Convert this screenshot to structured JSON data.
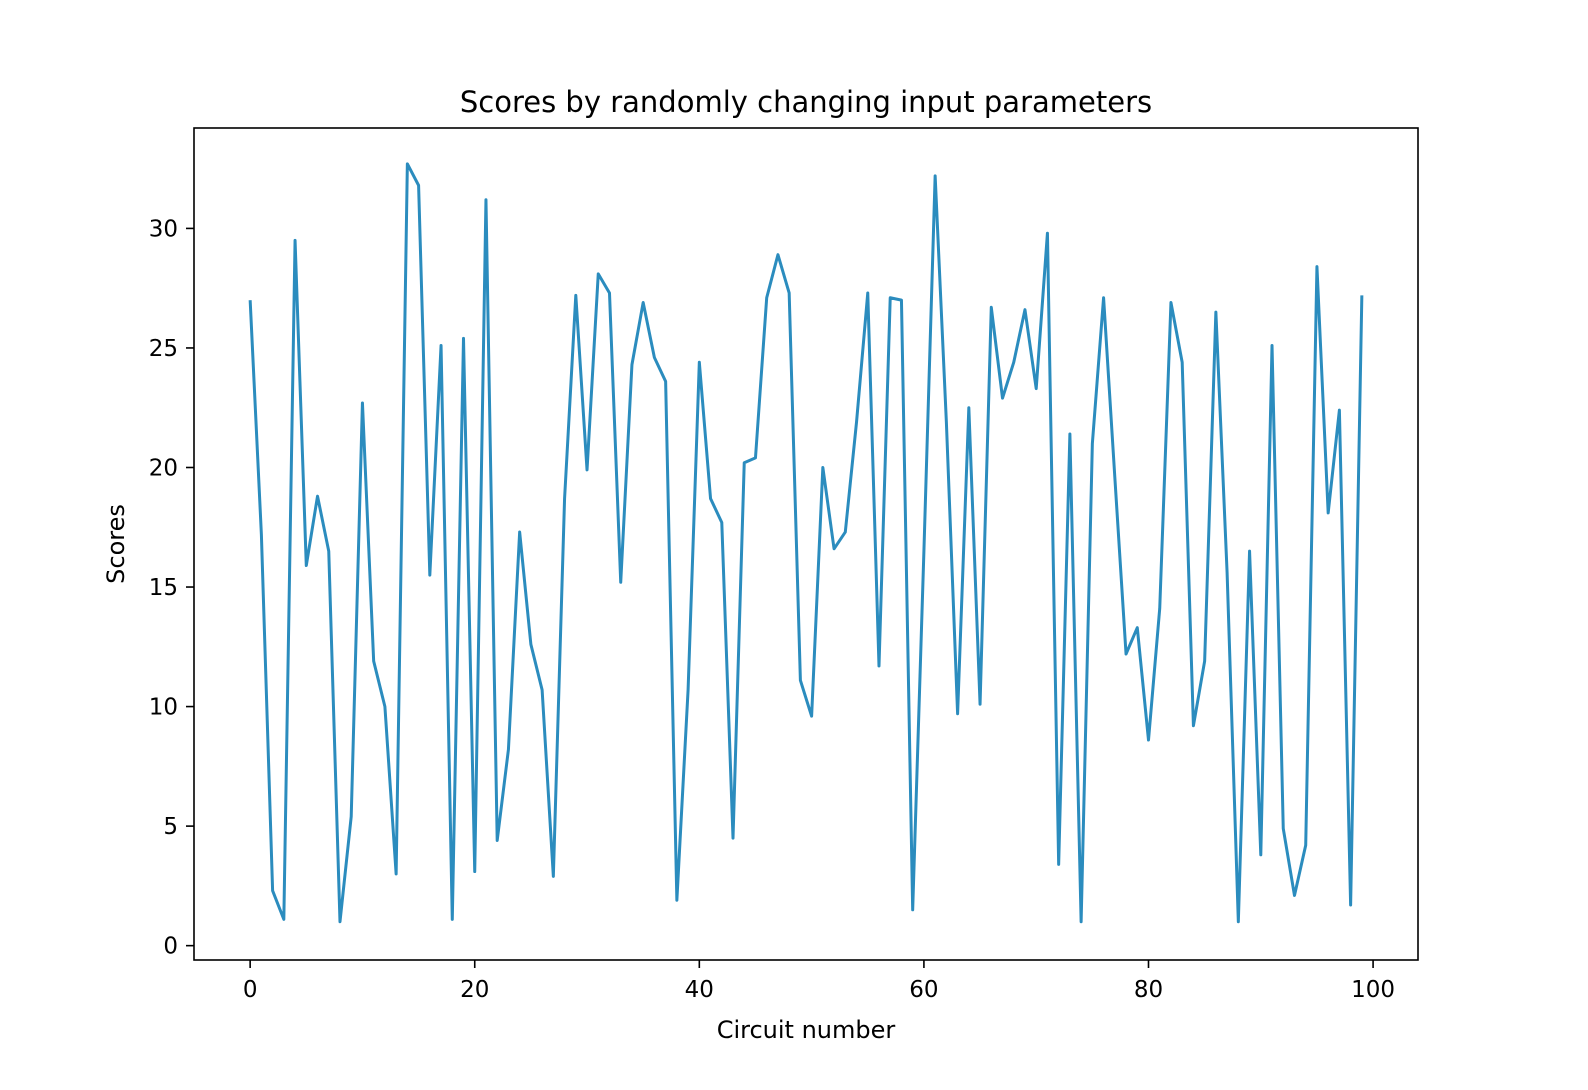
{
  "chart_data": {
    "type": "line",
    "title": "Scores by randomly changing input parameters",
    "xlabel": "Circuit number",
    "ylabel": "Scores",
    "xlim": [
      -5,
      104
    ],
    "ylim": [
      -0.6,
      34.2
    ],
    "xticks": [
      0,
      20,
      40,
      60,
      80,
      100
    ],
    "yticks": [
      0,
      5,
      10,
      15,
      20,
      25,
      30
    ],
    "grid": false,
    "color": "#2b8cbe",
    "series": [
      {
        "x": [
          0,
          1,
          2,
          3,
          4,
          5,
          6,
          7,
          8,
          9,
          10,
          11,
          12,
          13,
          14,
          15,
          16,
          17,
          18,
          19,
          20,
          21,
          22,
          23,
          24,
          25,
          26,
          27,
          28,
          29,
          30,
          31,
          32,
          33,
          34,
          35,
          36,
          37,
          38,
          39,
          40,
          41,
          42,
          43,
          44,
          45,
          46,
          47,
          48,
          49,
          50,
          51,
          52,
          53,
          54,
          55,
          56,
          57,
          58,
          59,
          60,
          61,
          62,
          63,
          64,
          65,
          66,
          67,
          68,
          69,
          70,
          71,
          72,
          73,
          74,
          75,
          76,
          77,
          78,
          79,
          80,
          81,
          82,
          83,
          84,
          85,
          86,
          87,
          88,
          89,
          90,
          91,
          92,
          93,
          94,
          95,
          96,
          97,
          98,
          99
        ],
        "values": [
          27.0,
          17.2,
          2.3,
          1.1,
          29.5,
          15.9,
          18.8,
          16.5,
          1.0,
          5.4,
          22.7,
          11.9,
          10.0,
          3.0,
          32.7,
          31.8,
          15.5,
          25.1,
          1.1,
          25.4,
          3.1,
          31.2,
          4.4,
          8.2,
          17.3,
          12.6,
          10.7,
          2.9,
          18.7,
          27.2,
          19.9,
          28.1,
          27.3,
          15.2,
          24.3,
          26.9,
          24.6,
          23.6,
          1.9,
          10.7,
          24.4,
          18.7,
          17.7,
          4.5,
          20.2,
          20.4,
          27.1,
          28.9,
          27.3,
          11.1,
          9.6,
          20.0,
          16.6,
          17.3,
          21.9,
          27.3,
          11.7,
          27.1,
          27.0,
          1.5,
          16.5,
          32.2,
          21.9,
          9.7,
          22.5,
          10.1,
          26.7,
          22.9,
          24.4,
          26.6,
          23.3,
          29.8,
          3.4,
          21.4,
          1.0,
          21.0,
          27.1,
          19.6,
          12.2,
          13.3,
          8.6,
          14.1,
          26.9,
          24.4,
          9.2,
          11.9,
          26.5,
          15.6,
          1.0,
          16.5,
          3.8,
          25.1,
          4.9,
          2.1,
          4.2,
          28.4,
          18.1,
          22.4,
          1.7,
          27.2
        ]
      }
    ]
  }
}
